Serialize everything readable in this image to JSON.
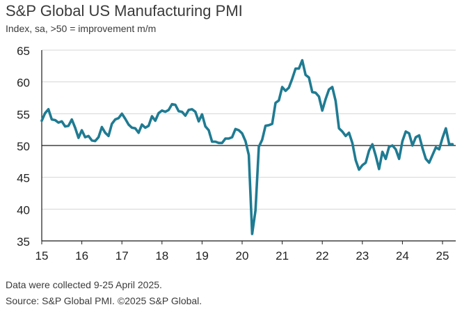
{
  "header": {
    "title": "S&P Global US Manufacturing PMI",
    "subtitle": "Index, sa, >50 = improvement m/m"
  },
  "footer": {
    "note": "Data were collected 9-25 April 2025.",
    "source": "Source: S&P Global PMI. ©2025 S&P Global."
  },
  "colors": {
    "line": "#1f7b92",
    "axis": "#1a1a1a",
    "grid": "#d4d4d4",
    "text": "#222222"
  },
  "chart_data": {
    "type": "line",
    "title": "S&P Global US Manufacturing PMI",
    "subtitle": "Index, sa, >50 = improvement m/m",
    "ylim": [
      35,
      65
    ],
    "yticks": [
      35,
      40,
      45,
      50,
      55,
      60,
      65
    ],
    "xlim": [
      2015.0,
      2025.33
    ],
    "xticks": [
      {
        "label": "15",
        "value": 2015
      },
      {
        "label": "16",
        "value": 2016
      },
      {
        "label": "17",
        "value": 2017
      },
      {
        "label": "18",
        "value": 2018
      },
      {
        "label": "19",
        "value": 2019
      },
      {
        "label": "20",
        "value": 2020
      },
      {
        "label": "21",
        "value": 2021
      },
      {
        "label": "22",
        "value": 2022
      },
      {
        "label": "23",
        "value": 2023
      },
      {
        "label": "24",
        "value": 2024
      },
      {
        "label": "25",
        "value": 2025
      }
    ],
    "grid": "horizontal",
    "reference_line": 50,
    "series": [
      {
        "x_start": 2015.0,
        "x_step": 0.0833333,
        "values": [
          53.9,
          55.1,
          55.7,
          54.1,
          54.0,
          53.6,
          53.8,
          53.0,
          53.1,
          54.1,
          52.8,
          51.2,
          52.4,
          51.3,
          51.5,
          50.8,
          50.7,
          51.3,
          52.9,
          52.0,
          51.5,
          53.4,
          54.1,
          54.3,
          55.0,
          54.2,
          53.3,
          52.8,
          52.7,
          52.0,
          53.3,
          52.8,
          53.1,
          54.6,
          53.9,
          55.1,
          55.5,
          55.3,
          55.6,
          56.5,
          56.4,
          55.4,
          55.3,
          54.7,
          55.6,
          55.7,
          55.3,
          53.8,
          54.9,
          53.0,
          52.4,
          50.6,
          50.6,
          50.4,
          50.4,
          51.1,
          51.1,
          51.3,
          52.6,
          52.4,
          51.9,
          50.7,
          48.5,
          36.1,
          39.8,
          49.8,
          50.9,
          53.1,
          53.2,
          53.4,
          56.7,
          57.1,
          59.2,
          58.6,
          59.1,
          60.5,
          62.1,
          62.1,
          63.4,
          61.1,
          60.7,
          58.4,
          58.3,
          57.7,
          55.5,
          57.3,
          58.8,
          59.2,
          57.0,
          52.7,
          52.2,
          51.5,
          52.0,
          50.4,
          47.7,
          46.2,
          46.9,
          47.3,
          49.2,
          50.2,
          48.4,
          46.3,
          49.0,
          47.9,
          49.8,
          50.0,
          49.4,
          47.9,
          50.7,
          52.2,
          51.9,
          50.0,
          51.3,
          51.6,
          49.6,
          47.9,
          47.3,
          48.5,
          49.7,
          49.4,
          51.2,
          52.7,
          50.2,
          50.2
        ]
      }
    ]
  }
}
